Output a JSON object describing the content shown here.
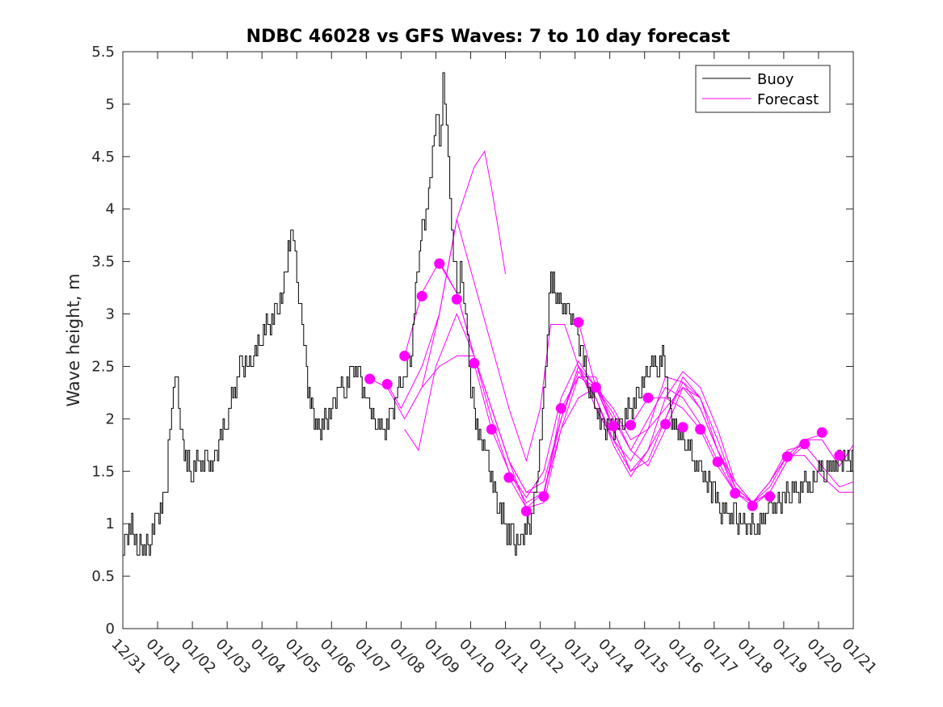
{
  "chart_data": {
    "type": "line",
    "title": "NDBC 46028 vs GFS Waves: 7 to 10 day forecast",
    "xlabel": "",
    "ylabel": "Wave height, m",
    "xlim": [
      0,
      21
    ],
    "ylim": [
      0,
      5.5
    ],
    "x_tick_values": [
      0,
      1,
      2,
      3,
      4,
      5,
      6,
      7,
      8,
      9,
      10,
      11,
      12,
      13,
      14,
      15,
      16,
      17,
      18,
      19,
      20,
      21
    ],
    "x_tick_labels": [
      "12/31",
      "01/01",
      "01/02",
      "01/03",
      "01/04",
      "01/05",
      "01/06",
      "01/07",
      "01/08",
      "01/09",
      "01/10",
      "01/11",
      "01/12",
      "01/13",
      "01/14",
      "01/15",
      "01/16",
      "01/17",
      "01/18",
      "01/19",
      "01/20",
      "01/21"
    ],
    "y_tick_values": [
      0,
      0.5,
      1,
      1.5,
      2,
      2.5,
      3,
      3.5,
      4,
      4.5,
      5,
      5.5
    ],
    "y_tick_labels": [
      "0",
      "0.5",
      "1",
      "1.5",
      "2",
      "2.5",
      "3",
      "3.5",
      "4",
      "4.5",
      "5",
      "5.5"
    ],
    "grid": false,
    "legend_position": "top-right",
    "legend": [
      {
        "label": "Buoy",
        "color": "#000000"
      },
      {
        "label": "Forecast",
        "color": "#ff00ff"
      }
    ],
    "buoy": {
      "name": "Buoy",
      "color": "#000000",
      "x": [
        0,
        0.1,
        0.25,
        0.45,
        0.6,
        0.8,
        1.0,
        1.15,
        1.25,
        1.3,
        1.4,
        1.5,
        1.55,
        1.65,
        1.8,
        2.0,
        2.2,
        2.4,
        2.6,
        2.8,
        3.0,
        3.2,
        3.4,
        3.6,
        3.8,
        4.0,
        4.2,
        4.4,
        4.6,
        4.75,
        4.9,
        5.0,
        5.1,
        5.2,
        5.35,
        5.5,
        5.65,
        5.8,
        6.0,
        6.2,
        6.4,
        6.6,
        6.8,
        7.0,
        7.1,
        7.3,
        7.5,
        7.7,
        7.9,
        8.1,
        8.3,
        8.45,
        8.6,
        8.75,
        8.9,
        9.0,
        9.1,
        9.2,
        9.3,
        9.4,
        9.5,
        9.6,
        9.7,
        9.8,
        9.9,
        10.0,
        10.1,
        10.25,
        10.45,
        10.6,
        10.8,
        11.0,
        11.2,
        11.4,
        11.55,
        11.7,
        11.9,
        12.1,
        12.2,
        12.3,
        12.45,
        12.6,
        12.8,
        13.0,
        13.2,
        13.4,
        13.6,
        13.8,
        14.0,
        14.2,
        14.4,
        14.6,
        14.8,
        15.0,
        15.2,
        15.4,
        15.55,
        15.7,
        15.85,
        16.0,
        16.2,
        16.4,
        16.6,
        16.8,
        17.0,
        17.2,
        17.4,
        17.6,
        17.8,
        18.0,
        18.2,
        18.4,
        18.6,
        18.8,
        19.0,
        19.2,
        19.4,
        19.6,
        19.8,
        20.0,
        20.2,
        20.4,
        20.6,
        20.8,
        21.0
      ],
      "y": [
        0.8,
        0.85,
        0.95,
        0.75,
        0.75,
        0.85,
        1.1,
        1.2,
        1.3,
        1.75,
        2.2,
        2.4,
        2.3,
        1.9,
        1.6,
        1.5,
        1.6,
        1.55,
        1.6,
        1.8,
        2.0,
        2.3,
        2.5,
        2.5,
        2.6,
        2.8,
        2.9,
        3.0,
        3.2,
        3.6,
        3.8,
        3.3,
        3.0,
        2.7,
        2.2,
        2.0,
        1.9,
        2.0,
        2.1,
        2.3,
        2.3,
        2.5,
        2.4,
        2.2,
        2.0,
        2.0,
        1.9,
        2.0,
        2.3,
        2.4,
        2.7,
        3.4,
        3.8,
        4.0,
        4.5,
        5.0,
        4.6,
        5.2,
        4.8,
        4.0,
        3.6,
        3.2,
        3.4,
        3.1,
        2.7,
        2.3,
        2.1,
        1.8,
        1.7,
        1.4,
        1.2,
        0.95,
        0.85,
        0.8,
        0.9,
        1.0,
        1.4,
        2.2,
        2.8,
        3.3,
        3.2,
        3.1,
        3.0,
        2.9,
        2.6,
        2.3,
        2.1,
        1.9,
        1.9,
        1.9,
        2.0,
        2.1,
        2.2,
        2.4,
        2.5,
        2.5,
        2.6,
        2.1,
        1.9,
        1.85,
        1.8,
        1.6,
        1.5,
        1.4,
        1.3,
        1.15,
        1.1,
        1.05,
        1.0,
        0.95,
        0.95,
        1.05,
        1.15,
        1.2,
        1.25,
        1.3,
        1.3,
        1.35,
        1.4,
        1.5,
        1.5,
        1.55,
        1.6,
        1.65,
        1.6
      ]
    },
    "forecast_points": {
      "name": "Forecast",
      "color": "#ff00ff",
      "x": [
        7.1,
        7.6,
        8.1,
        8.6,
        9.1,
        9.6,
        10.1,
        10.6,
        11.1,
        11.6,
        12.1,
        12.6,
        13.1,
        13.6,
        14.1,
        14.6,
        15.1,
        15.6,
        16.1,
        16.6,
        17.1,
        17.6,
        18.1,
        18.6,
        19.1,
        19.6,
        20.1,
        20.6
      ],
      "y": [
        2.38,
        2.33,
        2.6,
        3.17,
        3.48,
        3.14,
        2.53,
        1.9,
        1.44,
        1.12,
        1.26,
        2.1,
        2.92,
        2.3,
        1.93,
        1.94,
        2.2,
        1.95,
        1.92,
        1.9,
        1.59,
        1.29,
        1.17,
        1.26,
        1.64,
        1.76,
        1.87,
        1.65
      ]
    },
    "forecast_runs": [
      {
        "name": "run-1",
        "x": [
          7.1,
          7.6,
          8.1,
          8.6,
          9.1,
          9.6,
          10.1,
          10.4,
          10.6,
          10.8,
          11.0
        ],
        "y": [
          2.38,
          2.3,
          2.0,
          2.3,
          3.0,
          3.9,
          4.4,
          4.55,
          4.2,
          3.8,
          3.38
        ]
      },
      {
        "name": "run-2",
        "x": [
          7.6,
          8.0,
          8.6,
          9.1,
          9.6,
          10.1,
          10.6,
          11.1,
          11.6,
          12.0,
          12.3,
          12.7,
          13.1,
          13.6,
          14.1,
          14.6
        ],
        "y": [
          2.33,
          2.1,
          2.5,
          3.0,
          3.9,
          3.3,
          2.7,
          2.1,
          1.6,
          2.1,
          2.9,
          2.9,
          2.5,
          2.1,
          1.8,
          1.5
        ]
      },
      {
        "name": "run-3",
        "x": [
          8.1,
          8.6,
          9.1,
          9.6,
          10.1,
          10.6,
          11.1,
          11.6,
          12.1,
          12.6,
          13.1,
          13.6,
          14.1,
          14.6,
          15.1,
          15.6,
          16.1,
          16.6
        ],
        "y": [
          2.6,
          3.2,
          3.5,
          3.2,
          2.6,
          2.0,
          1.5,
          1.25,
          1.5,
          2.2,
          2.55,
          2.3,
          2.1,
          1.8,
          1.9,
          2.1,
          2.3,
          2.2
        ]
      },
      {
        "name": "run-4",
        "x": [
          8.1,
          8.5,
          9.0,
          9.6,
          10.1,
          10.6,
          11.1,
          11.6,
          12.1,
          12.6,
          13.1,
          13.6,
          14.1,
          14.6,
          15.1,
          15.6,
          16.1,
          16.6,
          17.1,
          17.6
        ],
        "y": [
          1.9,
          1.7,
          2.5,
          3.0,
          2.6,
          2.1,
          1.6,
          1.15,
          1.2,
          1.9,
          2.4,
          2.4,
          1.9,
          1.5,
          1.7,
          2.0,
          2.4,
          2.2,
          1.7,
          1.3
        ]
      },
      {
        "name": "run-5",
        "x": [
          8.6,
          9.1,
          9.6,
          10.1,
          10.6,
          11.1,
          11.6,
          12.1,
          12.6,
          13.1,
          13.6,
          14.1,
          14.6,
          15.1,
          15.6,
          16.1,
          16.6,
          17.1,
          17.6,
          18.1,
          18.6
        ],
        "y": [
          2.3,
          2.5,
          2.6,
          2.6,
          2.1,
          1.6,
          1.3,
          1.3,
          1.9,
          2.2,
          2.3,
          2.05,
          1.7,
          1.55,
          1.9,
          2.3,
          2.1,
          1.7,
          1.4,
          1.2,
          1.3
        ]
      },
      {
        "name": "run-6",
        "x": [
          9.1,
          9.6,
          10.1,
          10.6,
          11.1,
          11.6,
          12.1,
          12.6,
          13.1,
          13.6,
          14.1,
          14.6,
          15.1,
          15.6,
          16.1,
          16.6,
          17.1,
          17.6,
          18.1,
          18.6,
          19.1,
          19.6
        ],
        "y": [
          3.48,
          3.2,
          2.6,
          2.1,
          1.6,
          1.3,
          1.4,
          2.0,
          2.5,
          2.3,
          1.9,
          1.5,
          1.6,
          2.0,
          2.35,
          2.2,
          1.8,
          1.35,
          1.2,
          1.4,
          1.7,
          1.75
        ]
      },
      {
        "name": "run-7",
        "x": [
          10.1,
          10.6,
          11.1,
          11.6,
          12.1,
          12.6,
          13.1,
          13.6,
          14.1,
          14.6,
          15.1,
          15.6,
          16.1,
          16.6,
          17.1,
          17.6,
          18.1,
          18.6,
          19.1,
          19.6,
          20.1
        ],
        "y": [
          2.53,
          1.9,
          1.5,
          1.2,
          1.3,
          2.0,
          2.45,
          2.2,
          1.75,
          1.45,
          1.7,
          2.2,
          2.45,
          2.3,
          1.9,
          1.4,
          1.2,
          1.3,
          1.6,
          1.8,
          1.85
        ]
      },
      {
        "name": "run-8",
        "x": [
          11.1,
          11.6,
          12.1,
          12.6,
          13.1,
          13.6,
          14.1,
          14.6,
          15.1,
          15.6,
          16.1,
          16.6,
          17.1,
          17.6,
          18.1,
          18.6,
          19.1,
          19.6,
          20.1,
          20.6,
          21.0
        ],
        "y": [
          1.44,
          1.15,
          1.3,
          2.0,
          2.5,
          2.2,
          1.8,
          1.6,
          1.9,
          2.4,
          2.35,
          2.1,
          1.7,
          1.35,
          1.2,
          1.35,
          1.65,
          1.8,
          1.8,
          1.55,
          1.75
        ]
      },
      {
        "name": "run-9",
        "x": [
          12.1,
          12.6,
          13.1,
          13.6,
          14.1,
          14.6,
          15.1,
          15.6,
          16.1,
          16.6,
          17.1,
          17.6,
          18.1,
          18.6,
          19.1,
          19.6,
          20.1,
          20.6,
          21.0
        ],
        "y": [
          1.26,
          2.1,
          2.4,
          2.3,
          2.0,
          1.7,
          2.0,
          2.3,
          2.2,
          1.95,
          1.6,
          1.3,
          1.17,
          1.3,
          1.6,
          1.75,
          1.55,
          1.35,
          1.4
        ]
      },
      {
        "name": "run-10",
        "x": [
          13.1,
          13.6,
          14.1,
          14.6,
          15.1,
          15.6,
          16.1,
          16.6,
          17.1,
          17.6,
          18.1,
          18.6,
          19.1,
          19.6,
          20.1,
          20.6,
          21.0
        ],
        "y": [
          2.92,
          2.3,
          1.93,
          1.94,
          2.2,
          2.2,
          2.1,
          1.9,
          1.55,
          1.3,
          1.2,
          1.4,
          1.65,
          1.65,
          1.45,
          1.3,
          1.3
        ]
      }
    ]
  }
}
